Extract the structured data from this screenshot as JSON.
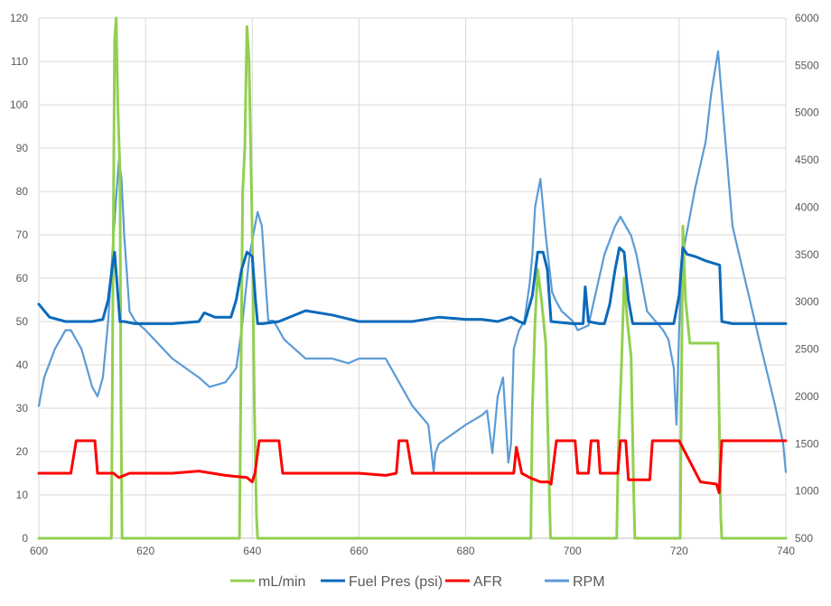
{
  "chart_data": {
    "type": "line",
    "xlim": [
      600,
      740
    ],
    "ylim_left": [
      0,
      120
    ],
    "ylim_right": [
      500,
      6000
    ],
    "x_ticks": [
      "600",
      "620",
      "640",
      "660",
      "680",
      "700",
      "720",
      "740"
    ],
    "y_ticks_left": [
      "0",
      "10",
      "20",
      "30",
      "40",
      "50",
      "60",
      "70",
      "80",
      "90",
      "100",
      "110",
      "120"
    ],
    "y_ticks_right": [
      "500",
      "1000",
      "1500",
      "2000",
      "2500",
      "3000",
      "3500",
      "4000",
      "4500",
      "5000",
      "5500",
      "6000"
    ],
    "grid": true,
    "legend_position": "bottom",
    "series": [
      {
        "name": "mL/min",
        "color": "#92d050",
        "axis": "left",
        "x": [
          600,
          613.6,
          613.9,
          614.2,
          614.5,
          614.8,
          615.2,
          615.4,
          615.6,
          637.6,
          637.9,
          638.2,
          638.6,
          639.0,
          639.4,
          640.0,
          640.4,
          640.8,
          641.0,
          692.2,
          692.5,
          693.0,
          693.5,
          694.2,
          695.0,
          695.6,
          695.9,
          708.3,
          708.6,
          709.2,
          709.7,
          710.3,
          711.0,
          711.5,
          711.7,
          720.2,
          720.4,
          720.7,
          721.2,
          722.0,
          725.0,
          727.3,
          727.8,
          728.0,
          740
        ],
        "y": [
          0,
          0,
          60,
          115,
          120,
          100,
          85,
          30,
          0,
          0,
          40,
          80,
          90,
          118,
          110,
          70,
          30,
          5,
          0,
          0,
          30,
          50,
          62,
          55,
          45,
          15,
          0,
          0,
          20,
          40,
          60,
          50,
          42,
          10,
          0,
          0,
          30,
          72,
          55,
          45,
          45,
          45,
          5,
          0,
          0
        ]
      },
      {
        "name": "Fuel Pres (psi)",
        "color": "#0b6abb",
        "axis": "left",
        "x": [
          600,
          602,
          605,
          610,
          612,
          613,
          613.7,
          614.2,
          614.7,
          615.2,
          616,
          618,
          625,
          630,
          631,
          633,
          636,
          637,
          638,
          639,
          640,
          640.6,
          641,
          642,
          645,
          650,
          655,
          660,
          665,
          670,
          675,
          680,
          683,
          686,
          688.5,
          690,
          691,
          692.5,
          693.5,
          694.5,
          695.3,
          696,
          700,
          702,
          702.4,
          703,
          705,
          706,
          707,
          708,
          708.8,
          709.7,
          710.5,
          711.3,
          712,
          715,
          719,
          720,
          720.7,
          721.5,
          723,
          725,
          727.6,
          728,
          730,
          735,
          740
        ],
        "y": [
          54,
          51,
          50,
          50,
          50.5,
          55,
          62,
          66,
          58,
          50,
          50,
          49.5,
          49.5,
          50,
          52,
          51,
          51,
          55,
          62,
          66,
          65,
          55,
          49.5,
          49.5,
          50,
          52.5,
          51.5,
          50,
          50,
          50,
          51,
          50.5,
          50.5,
          50,
          51,
          50,
          49.5,
          56,
          66,
          66,
          62,
          50,
          49.5,
          49.5,
          58,
          50,
          49.5,
          49.5,
          54,
          62,
          67,
          66,
          55,
          49.5,
          49.5,
          49.5,
          49.5,
          56,
          67,
          65.5,
          65,
          64,
          63,
          50,
          49.5,
          49.5,
          49.5
        ]
      },
      {
        "name": "AFR",
        "color": "#ff0000",
        "axis": "left",
        "x": [
          600,
          606,
          607,
          610.5,
          611,
          614,
          615,
          617,
          625,
          630,
          635,
          639,
          640,
          640.5,
          641.3,
          642,
          645,
          645.7,
          648,
          655,
          660,
          665,
          667,
          667.5,
          669,
          670,
          673,
          675,
          680,
          685,
          687,
          689,
          689.5,
          690.5,
          692,
          694,
          695.5,
          696,
          697,
          700.5,
          701,
          703,
          703.5,
          704.8,
          705.2,
          708.5,
          709,
          710,
          710.5,
          714.5,
          715,
          720,
          724,
          727,
          727.5,
          728,
          729,
          735,
          740
        ],
        "y": [
          15,
          15,
          22.5,
          22.5,
          15,
          15,
          14,
          15,
          15,
          15.5,
          14.5,
          14,
          13,
          15,
          22.5,
          22.5,
          22.5,
          15,
          15,
          15,
          15,
          14.5,
          15,
          22.5,
          22.5,
          15,
          15,
          15,
          15,
          15,
          15,
          15,
          21,
          15,
          14,
          13,
          13,
          12.5,
          22.5,
          22.5,
          15,
          15,
          22.5,
          22.5,
          15,
          15,
          22.5,
          22.5,
          13.5,
          13.5,
          22.5,
          22.5,
          13,
          12.5,
          10.5,
          22.5,
          22.5,
          22.5,
          22.5
        ]
      },
      {
        "name": "RPM",
        "color": "#5b9bd5",
        "axis": "right",
        "x": [
          600,
          601,
          603,
          605,
          606,
          608,
          610,
          611,
          612,
          613,
          614,
          615,
          615.5,
          616,
          617,
          618,
          620,
          625,
          630,
          632,
          635,
          637,
          638,
          639.5,
          641,
          641.8,
          642.5,
          643,
          644,
          646,
          650,
          655,
          658,
          660,
          665,
          667,
          670,
          673,
          674,
          674.3,
          675,
          680,
          683,
          684,
          685,
          686,
          687,
          688,
          688.5,
          689,
          690,
          691,
          692,
          692.5,
          693,
          694,
          695,
          695.8,
          696.2,
          697,
          698,
          700,
          701,
          703,
          706,
          708,
          709,
          710,
          711,
          712,
          713,
          714,
          717,
          718,
          719,
          719.5,
          720,
          720.3,
          721,
          723,
          725,
          726,
          727.3,
          727.8,
          730,
          735,
          738,
          739.5,
          740
        ],
        "y": [
          1900,
          2200,
          2500,
          2700,
          2700,
          2500,
          2100,
          2000,
          2200,
          2800,
          3700,
          4500,
          4300,
          3700,
          2900,
          2800,
          2700,
          2400,
          2200,
          2100,
          2150,
          2300,
          2700,
          3500,
          3950,
          3800,
          3200,
          2800,
          2800,
          2600,
          2400,
          2400,
          2350,
          2400,
          2400,
          2200,
          1900,
          1700,
          1200,
          1400,
          1500,
          1700,
          1800,
          1850,
          1400,
          2000,
          2200,
          1300,
          1500,
          2500,
          2700,
          2800,
          3200,
          3500,
          4000,
          4300,
          3700,
          3300,
          3100,
          3000,
          2900,
          2800,
          2700,
          2750,
          3500,
          3800,
          3900,
          3800,
          3700,
          3500,
          3200,
          2900,
          2700,
          2600,
          2300,
          1700,
          2700,
          3100,
          3600,
          4200,
          4700,
          5200,
          5650,
          5300,
          3800,
          2600,
          1900,
          1500,
          1200
        ]
      }
    ]
  }
}
